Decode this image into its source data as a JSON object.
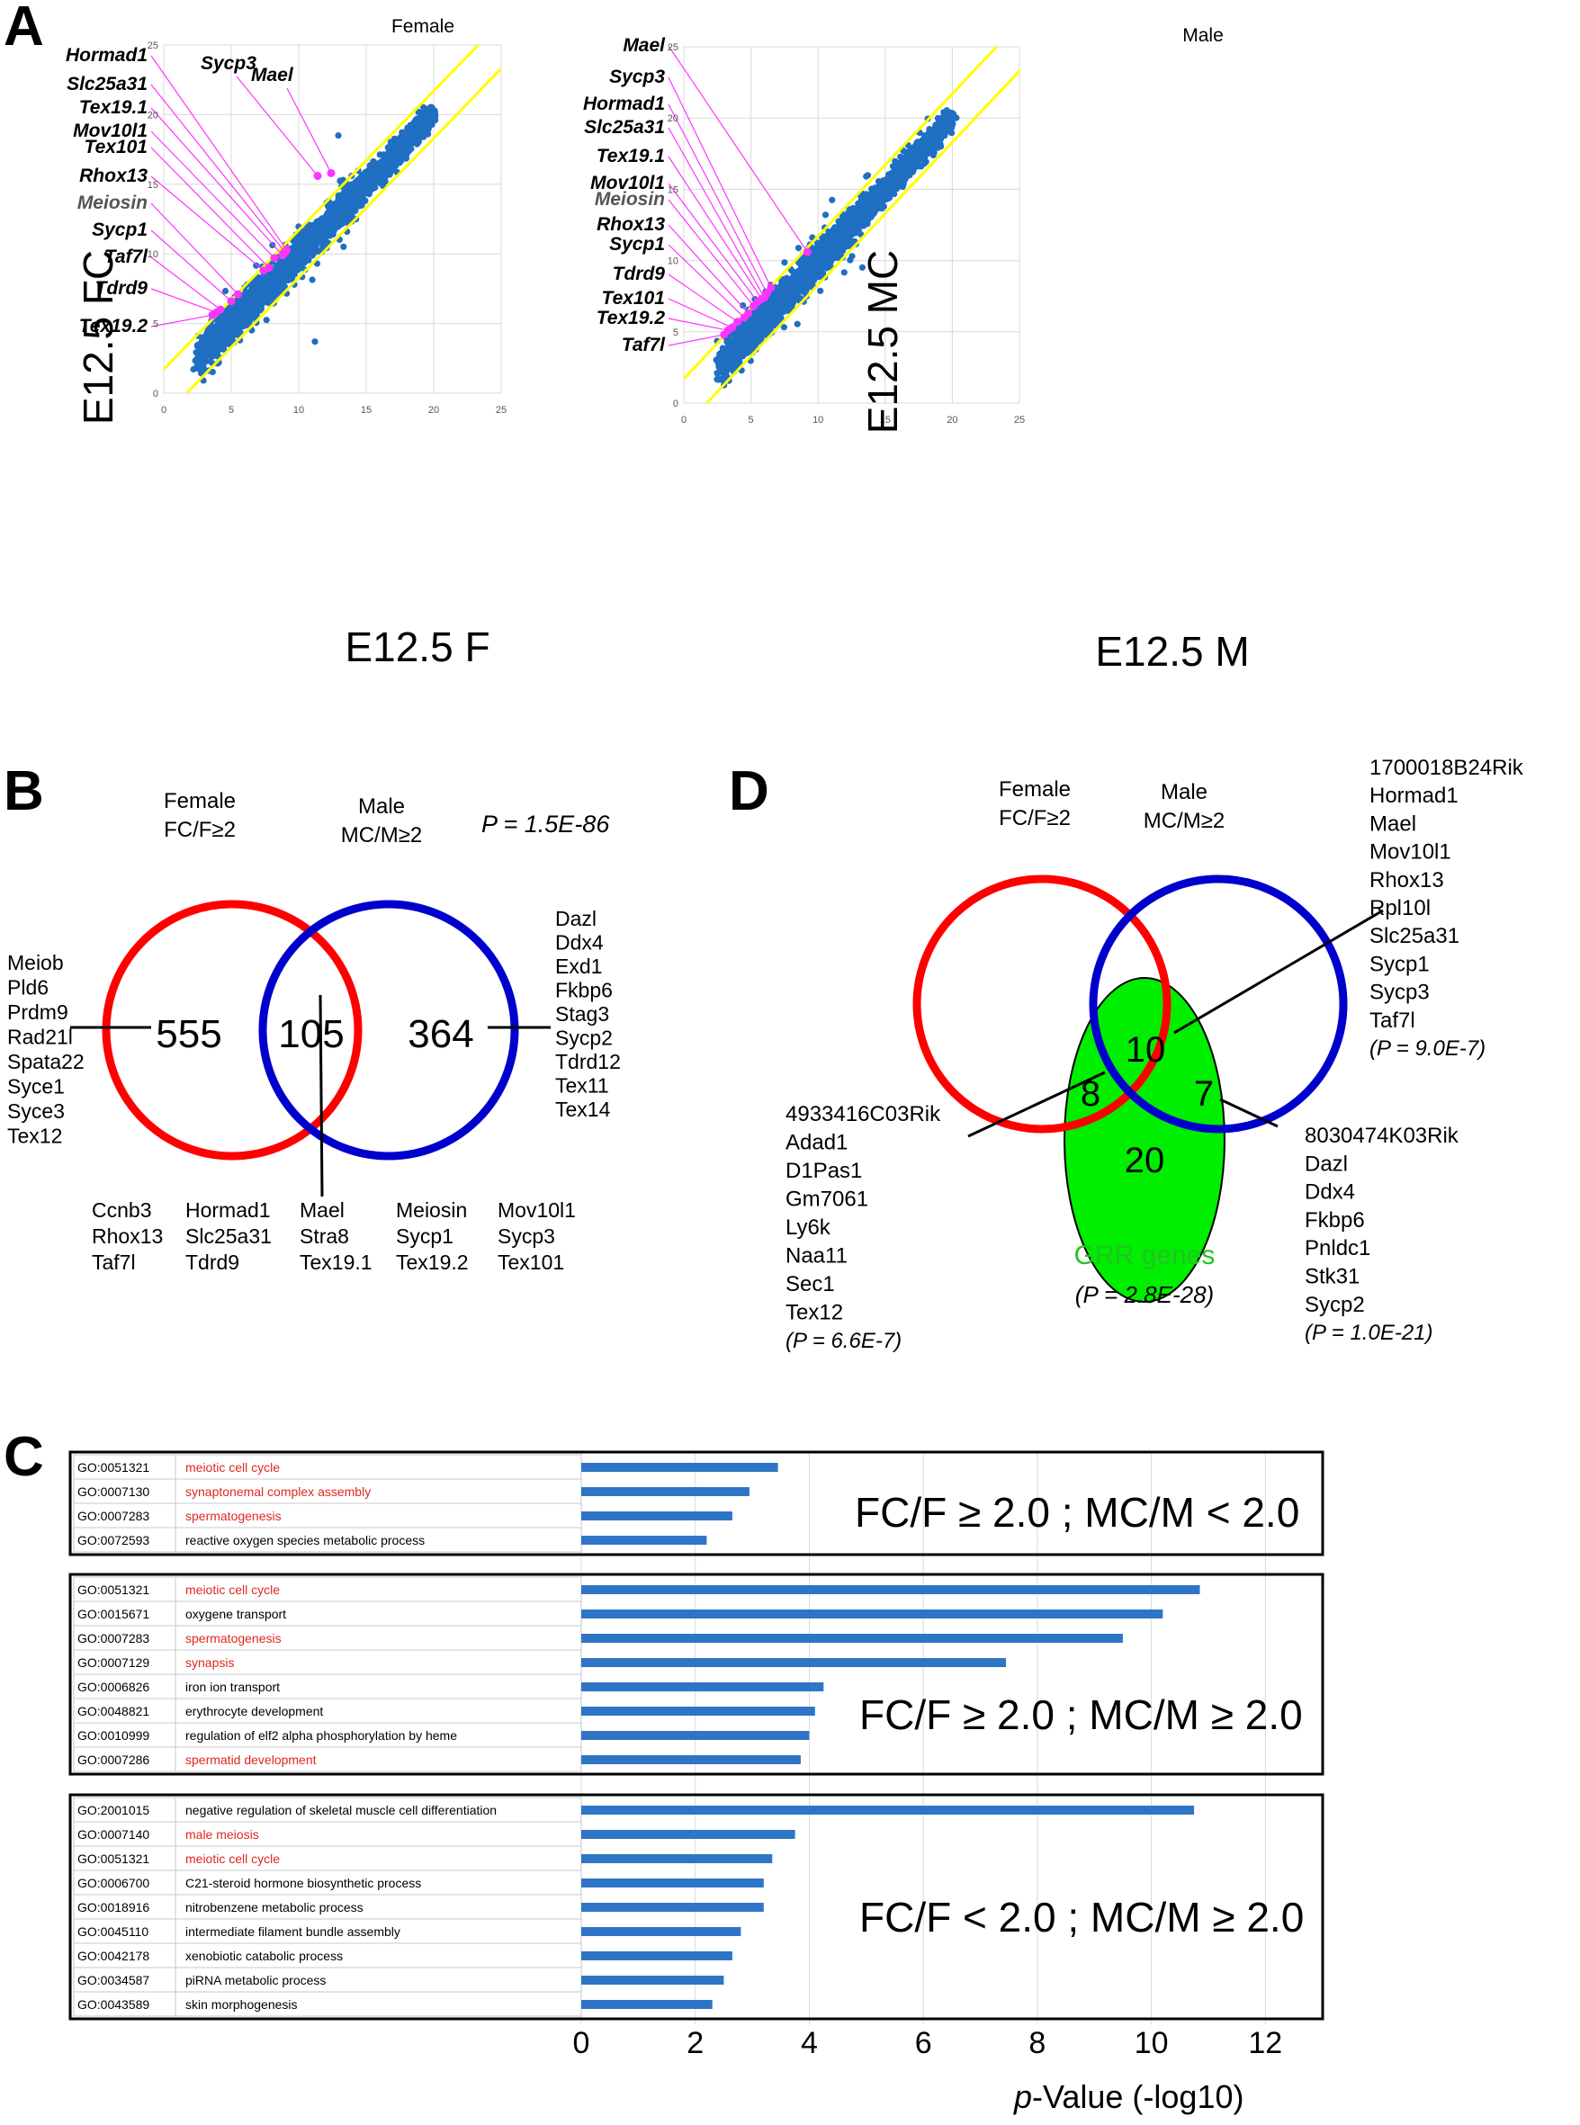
{
  "panel_letters": {
    "a": "A",
    "b": "B",
    "c": "C",
    "d": "D"
  },
  "chart_data": [
    {
      "type": "scatter",
      "panel": "A-left",
      "title": "Female",
      "xlabel": "E12.5 F",
      "ylabel": "E12.5 FC",
      "xlim": [
        0,
        25
      ],
      "ylim": [
        0,
        25
      ],
      "xticks": [
        "0",
        "5",
        "10",
        "15",
        "20",
        "25"
      ],
      "yticks": [
        "0",
        "5",
        "10",
        "15",
        "20",
        "25"
      ],
      "grid": true,
      "fold_lines": [
        "y = x + 1",
        "y = x - 1"
      ],
      "bulk_points": {
        "description": "dense diagonal cloud",
        "x_range": [
          2.5,
          20
        ],
        "y_range": [
          2.5,
          20
        ]
      },
      "highlighted": [
        {
          "label": "Hormad1",
          "x": 9.1,
          "y": 10.3
        },
        {
          "label": "Sycp3",
          "x": 11.4,
          "y": 15.6
        },
        {
          "label": "Mael",
          "x": 12.4,
          "y": 15.8
        },
        {
          "label": "Slc25a31",
          "x": 9.0,
          "y": 10.1
        },
        {
          "label": "Tex19.1",
          "x": 8.8,
          "y": 9.9
        },
        {
          "label": "Mov10l1",
          "x": 8.2,
          "y": 9.7
        },
        {
          "label": "Tex101",
          "x": 7.8,
          "y": 9.0
        },
        {
          "label": "Rhox13",
          "x": 7.4,
          "y": 8.8
        },
        {
          "label": "Meiosin",
          "x": 5.5,
          "y": 7.1
        },
        {
          "label": "Sycp1",
          "x": 5.0,
          "y": 6.6
        },
        {
          "label": "Taf7l",
          "x": 4.2,
          "y": 6.0
        },
        {
          "label": "Tdrd9",
          "x": 3.9,
          "y": 5.8
        },
        {
          "label": "Tex19.2",
          "x": 3.6,
          "y": 5.6
        }
      ],
      "outliers_below": [
        {
          "x": 11.2,
          "y": 3.7
        }
      ]
    },
    {
      "type": "scatter",
      "panel": "A-right",
      "title": "Male",
      "xlabel": "E12.5 M",
      "ylabel": "E12.5 MC",
      "xlim": [
        0,
        25
      ],
      "ylim": [
        0,
        25
      ],
      "xticks": [
        "0",
        "5",
        "10",
        "15",
        "20",
        "25"
      ],
      "yticks": [
        "0",
        "5",
        "10",
        "15",
        "20",
        "25"
      ],
      "grid": true,
      "fold_lines": [
        "y = x + 1",
        "y = x - 1"
      ],
      "bulk_points": {
        "description": "dense diagonal cloud",
        "x_range": [
          2.5,
          20
        ],
        "y_range": [
          2.5,
          20
        ]
      },
      "highlighted": [
        {
          "label": "Mael",
          "x": 9.2,
          "y": 10.6
        },
        {
          "label": "Sycp3",
          "x": 6.5,
          "y": 8.1
        },
        {
          "label": "Hormad1",
          "x": 6.2,
          "y": 7.7
        },
        {
          "label": "Slc25a31",
          "x": 6.0,
          "y": 7.4
        },
        {
          "label": "Tex19.1",
          "x": 5.8,
          "y": 7.3
        },
        {
          "label": "Mov10l1",
          "x": 5.5,
          "y": 7.1
        },
        {
          "label": "Meiosin",
          "x": 5.2,
          "y": 6.8
        },
        {
          "label": "Rhox13",
          "x": 4.8,
          "y": 6.3
        },
        {
          "label": "Sycp1",
          "x": 4.5,
          "y": 6.0
        },
        {
          "label": "Tdrd9",
          "x": 4.0,
          "y": 5.7
        },
        {
          "label": "Tex101",
          "x": 3.6,
          "y": 5.3
        },
        {
          "label": "Tex19.2",
          "x": 3.3,
          "y": 5.1
        },
        {
          "label": "Taf7l",
          "x": 3.0,
          "y": 4.8
        }
      ]
    },
    {
      "type": "venn",
      "panel": "B",
      "sets": [
        {
          "name": "Female",
          "subtitle": "FC/F≥2",
          "color": "#ff0000"
        },
        {
          "name": "Male",
          "subtitle": "MC/M≥2",
          "color": "#0000cc"
        }
      ],
      "counts": {
        "female_only": "555",
        "both": "105",
        "male_only": "364"
      },
      "p_value": "P = 1.5E-86",
      "female_only_genes": [
        "Meiob",
        "Pld6",
        "Prdm9",
        "Rad21l",
        "Spata22",
        "Syce1",
        "Syce3",
        "Tex12"
      ],
      "male_only_genes": [
        "Dazl",
        "Ddx4",
        "Exd1",
        "Fkbp6",
        "Stag3",
        "Sycp2",
        "Tdrd12",
        "Tex11",
        "Tex14"
      ],
      "shared_genes_rows": [
        [
          "Ccnb3",
          "Hormad1",
          "Mael",
          "Meiosin",
          "Mov10l1"
        ],
        [
          "Rhox13",
          "Slc25a31",
          "Stra8",
          "Sycp1",
          "Sycp3"
        ],
        [
          "Taf7l",
          "Tdrd9",
          "Tex19.1",
          "Tex19.2",
          "Tex101"
        ]
      ]
    },
    {
      "type": "venn",
      "panel": "D",
      "sets": [
        {
          "name": "Female",
          "subtitle": "FC/F≥2",
          "color": "#ff0000"
        },
        {
          "name": "Male",
          "subtitle": "MC/M≥2",
          "color": "#0000cc"
        },
        {
          "name": "GRR genes",
          "subtitle": "(P = 2.8E-28)",
          "color": "#00e000"
        }
      ],
      "counts": {
        "grr_female": "8",
        "grr_both": "10",
        "grr_male": "7",
        "grr_only": "20"
      },
      "both_genes": [
        "1700018B24Rik",
        "Hormad1",
        "Mael",
        "Mov10l1",
        "Rhox13",
        "Rpl10l",
        "Slc25a31",
        "Sycp1",
        "Sycp3",
        "Taf7l"
      ],
      "both_p": "(P = 9.0E-7)",
      "female_genes": [
        "4933416C03Rik",
        "Adad1",
        "D1Pas1",
        "Gm7061",
        "Ly6k",
        "Naa11",
        "Sec1",
        "Tex12"
      ],
      "female_p": "(P = 6.6E-7)",
      "male_genes": [
        "8030474K03Rik",
        "Dazl",
        "Ddx4",
        "Fkbp6",
        "Pnldc1",
        "Stk31",
        "Sycp2"
      ],
      "male_p": "(P = 1.0E-21)"
    },
    {
      "type": "bar",
      "orientation": "horizontal",
      "panel": "C",
      "xlabel_prefix": "p",
      "xlabel_rest": "-Value (-log10)",
      "xlim": [
        0,
        12.5
      ],
      "xticks": [
        "0",
        "2",
        "4",
        "6",
        "8",
        "10",
        "12"
      ],
      "bar_color": "#2e75c6",
      "highlight_color": "#e0271f",
      "groups": [
        {
          "label": "FC/F ≥  2.0 ; MC/M < 2.0",
          "rows": [
            {
              "id": "GO:0051321",
              "term": "meiotic cell cycle",
              "value": 3.45,
              "red": true
            },
            {
              "id": "GO:0007130",
              "term": "synaptonemal complex assembly",
              "value": 2.95,
              "red": true
            },
            {
              "id": "GO:0007283",
              "term": "spermatogenesis",
              "value": 2.65,
              "red": true
            },
            {
              "id": "GO:0072593",
              "term": "reactive oxygen species metabolic process",
              "value": 2.2,
              "red": false
            }
          ]
        },
        {
          "label": "FC/F ≥  2.0 ; MC/M ≥ 2.0",
          "rows": [
            {
              "id": "GO:0051321",
              "term": "meiotic cell cycle",
              "value": 10.85,
              "red": true
            },
            {
              "id": "GO:0015671",
              "term": "oxygene transport",
              "value": 10.2,
              "red": false
            },
            {
              "id": "GO:0007283",
              "term": "spermatogenesis",
              "value": 9.5,
              "red": true
            },
            {
              "id": "GO:0007129",
              "term": "synapsis",
              "value": 7.45,
              "red": true
            },
            {
              "id": "GO:0006826",
              "term": "iron ion transport",
              "value": 4.25,
              "red": false
            },
            {
              "id": "GO:0048821",
              "term": "erythrocyte development",
              "value": 4.1,
              "red": false
            },
            {
              "id": "GO:0010999",
              "term": "regulation of elf2 alpha phosphorylation by heme",
              "value": 4.0,
              "red": false
            },
            {
              "id": "GO:0007286",
              "term": "spermatid development",
              "value": 3.85,
              "red": true
            }
          ]
        },
        {
          "label": "FC/F <  2.0 ; MC/M ≥ 2.0",
          "rows": [
            {
              "id": "GO:2001015",
              "term": "negative regulation of skeletal muscle cell differentiation",
              "value": 10.75,
              "red": false
            },
            {
              "id": "GO:0007140",
              "term": "male meiosis",
              "value": 3.75,
              "red": true
            },
            {
              "id": "GO:0051321",
              "term": "meiotic cell cycle",
              "value": 3.35,
              "red": true
            },
            {
              "id": "GO:0006700",
              "term": "C21-steroid hormone biosynthetic process",
              "value": 3.2,
              "red": false
            },
            {
              "id": "GO:0018916",
              "term": "nitrobenzene metabolic process",
              "value": 3.2,
              "red": false
            },
            {
              "id": "GO:0045110",
              "term": "intermediate filament bundle assembly",
              "value": 2.8,
              "red": false
            },
            {
              "id": "GO:0042178",
              "term": "xenobiotic catabolic process",
              "value": 2.65,
              "red": false
            },
            {
              "id": "GO:0034587",
              "term": "piRNA metabolic process",
              "value": 2.5,
              "red": false
            },
            {
              "id": "GO:0043589",
              "term": "skin morphogenesis",
              "value": 2.3,
              "red": false
            }
          ]
        }
      ]
    }
  ]
}
